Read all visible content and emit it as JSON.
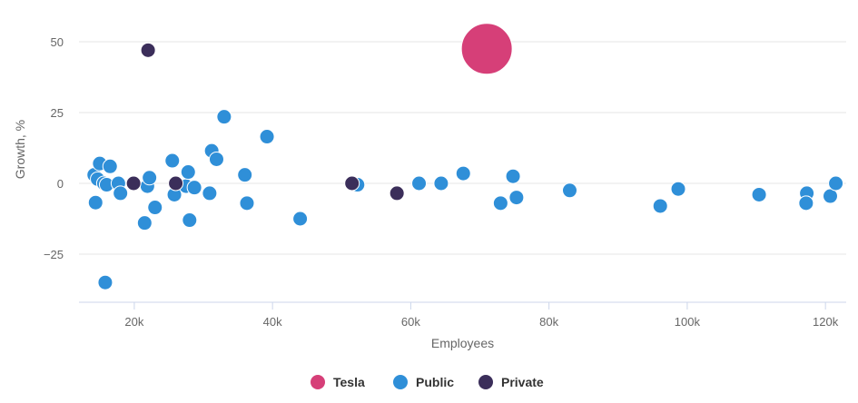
{
  "chart_data": {
    "type": "scatter",
    "xlabel": "Employees",
    "ylabel": "Growth, %",
    "xlim": [
      12000,
      123000
    ],
    "ylim": [
      -42,
      58
    ],
    "x_ticks": [
      20000,
      40000,
      60000,
      80000,
      100000,
      120000
    ],
    "x_tick_labels": [
      "20k",
      "40k",
      "60k",
      "80k",
      "100k",
      "120k"
    ],
    "y_ticks": [
      50,
      25,
      0,
      -25
    ],
    "y_tick_labels": [
      "50",
      "25",
      "0",
      "−25"
    ],
    "grid": true,
    "legend_position": "bottom-center",
    "series": [
      {
        "name": "Tesla",
        "color": "#d63f78",
        "marker": "large-circle",
        "points": [
          [
            71000,
            47.5
          ]
        ]
      },
      {
        "name": "Public",
        "color": "#2f8fd8",
        "marker": "circle",
        "points": [
          [
            14200,
            3
          ],
          [
            14400,
            -6.8
          ],
          [
            14700,
            1.5
          ],
          [
            15000,
            7
          ],
          [
            15600,
            0
          ],
          [
            16000,
            -0.5
          ],
          [
            15800,
            -35
          ],
          [
            16500,
            6
          ],
          [
            17700,
            0
          ],
          [
            18000,
            -3.5
          ],
          [
            21500,
            -14
          ],
          [
            21900,
            -1
          ],
          [
            22200,
            2
          ],
          [
            23000,
            -8.5
          ],
          [
            25500,
            8
          ],
          [
            25800,
            -4
          ],
          [
            27500,
            -1
          ],
          [
            27800,
            4
          ],
          [
            28000,
            -13
          ],
          [
            28700,
            -1.5
          ],
          [
            30900,
            -3.5
          ],
          [
            31200,
            11.5
          ],
          [
            31900,
            8.5
          ],
          [
            33000,
            23.5
          ],
          [
            36000,
            3
          ],
          [
            36300,
            -7
          ],
          [
            39200,
            16.5
          ],
          [
            44000,
            -12.5
          ],
          [
            52300,
            -0.5
          ],
          [
            61200,
            0
          ],
          [
            64400,
            0
          ],
          [
            67600,
            3.5
          ],
          [
            73000,
            -7
          ],
          [
            74800,
            2.5
          ],
          [
            75300,
            -5
          ],
          [
            83000,
            -2.5
          ],
          [
            96100,
            -8
          ],
          [
            98700,
            -2
          ],
          [
            110400,
            -4
          ],
          [
            117300,
            -3.5
          ],
          [
            117200,
            -7
          ],
          [
            120700,
            -4.5
          ],
          [
            121500,
            0
          ]
        ]
      },
      {
        "name": "Private",
        "color": "#3b2e5a",
        "marker": "circle",
        "points": [
          [
            19900,
            0
          ],
          [
            22000,
            47
          ],
          [
            26000,
            0
          ],
          [
            51500,
            0
          ],
          [
            58000,
            -3.5
          ]
        ]
      }
    ]
  }
}
